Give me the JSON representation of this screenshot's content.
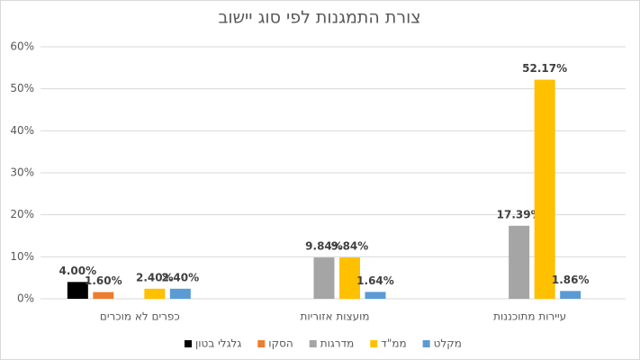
{
  "chart_data": {
    "type": "bar",
    "title": "צורת התמגנות לפי סוג יישוב",
    "categories": [
      "כפרים לא מוכרים",
      "מועצות אזוריות",
      "עיירות מתוכננות"
    ],
    "series": [
      {
        "name": "גלגלי בטון",
        "color": "#000000",
        "values": [
          4.0,
          null,
          null
        ],
        "value_labels": [
          "4.00%",
          null,
          null
        ]
      },
      {
        "name": "הסקו",
        "color": "#ed7d31",
        "values": [
          1.6,
          null,
          null
        ],
        "value_labels": [
          "1.60%",
          null,
          null
        ]
      },
      {
        "name": "מדרגות",
        "color": "#a5a5a5",
        "values": [
          null,
          9.84,
          17.39
        ],
        "value_labels": [
          null,
          "9.84%",
          "17.39%"
        ]
      },
      {
        "name": "ממ\"ד",
        "color": "#ffc000",
        "values": [
          2.4,
          9.84,
          52.17
        ],
        "value_labels": [
          "2.40%",
          "9.84%",
          "52.17%"
        ]
      },
      {
        "name": "מקלט",
        "color": "#5b9bd5",
        "values": [
          2.4,
          1.64,
          1.86
        ],
        "value_labels": [
          "2.40%",
          "1.64%",
          "1.86%"
        ]
      }
    ],
    "ylim": [
      0,
      60
    ],
    "yticks": [
      {
        "value": 0,
        "label": "0%"
      },
      {
        "value": 10,
        "label": "10%"
      },
      {
        "value": 20,
        "label": "20%"
      },
      {
        "value": 30,
        "label": "30%"
      },
      {
        "value": 40,
        "label": "40%"
      },
      {
        "value": 50,
        "label": "50%"
      },
      {
        "value": 60,
        "label": "60%"
      }
    ],
    "grid": true,
    "legend": "bottom"
  }
}
